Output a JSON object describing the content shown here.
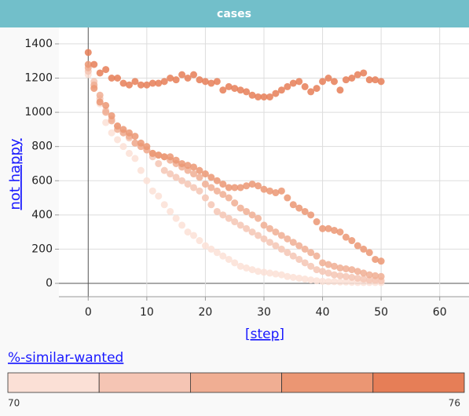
{
  "chart_data": {
    "type": "scatter",
    "title": "cases",
    "x_label": "[step]",
    "y_label": "not happy",
    "x": [
      0,
      1,
      2,
      3,
      4,
      5,
      6,
      7,
      8,
      9,
      10,
      11,
      12,
      13,
      14,
      15,
      16,
      17,
      18,
      19,
      20,
      21,
      22,
      23,
      24,
      25,
      26,
      27,
      28,
      29,
      30,
      31,
      32,
      33,
      34,
      35,
      36,
      37,
      38,
      39,
      40,
      41,
      42,
      43,
      44,
      45,
      46,
      47,
      48,
      49,
      50
    ],
    "series": [
      {
        "color": "#fbe0d6",
        "values": [
          1220,
          1150,
          1050,
          940,
          880,
          840,
          800,
          760,
          730,
          660,
          600,
          540,
          510,
          460,
          420,
          380,
          340,
          300,
          280,
          250,
          220,
          200,
          180,
          160,
          140,
          120,
          100,
          90,
          80,
          70,
          65,
          60,
          55,
          50,
          40,
          35,
          30,
          25,
          20,
          15,
          12,
          10,
          10,
          8,
          8,
          6,
          5,
          5,
          5,
          5,
          5
        ]
      },
      {
        "color": "#f5c5b4",
        "values": [
          1240,
          1180,
          1080,
          1010,
          960,
          920,
          880,
          850,
          820,
          800,
          780,
          740,
          700,
          660,
          640,
          620,
          600,
          580,
          560,
          540,
          500,
          460,
          420,
          400,
          380,
          360,
          340,
          320,
          300,
          280,
          260,
          240,
          220,
          200,
          180,
          160,
          140,
          120,
          100,
          80,
          70,
          60,
          50,
          45,
          40,
          35,
          30,
          25,
          20,
          18,
          15
        ]
      },
      {
        "color": "#f0ae93",
        "values": [
          1260,
          1160,
          1100,
          1000,
          950,
          900,
          880,
          860,
          820,
          800,
          780,
          760,
          750,
          740,
          720,
          700,
          680,
          660,
          640,
          620,
          580,
          560,
          540,
          520,
          500,
          470,
          440,
          420,
          400,
          380,
          340,
          320,
          300,
          280,
          260,
          240,
          220,
          200,
          180,
          160,
          120,
          110,
          100,
          90,
          85,
          80,
          70,
          60,
          50,
          45,
          40
        ]
      },
      {
        "color": "#eb9673",
        "values": [
          1280,
          1140,
          1060,
          1040,
          980,
          920,
          900,
          880,
          860,
          820,
          800,
          760,
          750,
          740,
          740,
          720,
          700,
          690,
          680,
          660,
          640,
          620,
          600,
          580,
          560,
          560,
          560,
          570,
          580,
          570,
          550,
          540,
          530,
          540,
          500,
          460,
          440,
          420,
          400,
          360,
          320,
          320,
          310,
          300,
          270,
          250,
          220,
          200,
          180,
          140,
          130
        ]
      },
      {
        "color": "#e67e57",
        "values": [
          1350,
          1280,
          1230,
          1250,
          1200,
          1200,
          1170,
          1160,
          1180,
          1160,
          1160,
          1170,
          1170,
          1180,
          1200,
          1190,
          1220,
          1200,
          1220,
          1190,
          1180,
          1170,
          1180,
          1130,
          1150,
          1140,
          1130,
          1120,
          1100,
          1090,
          1090,
          1090,
          1110,
          1130,
          1150,
          1170,
          1180,
          1150,
          1120,
          1140,
          1180,
          1200,
          1180,
          1130,
          1190,
          1200,
          1220,
          1230,
          1190,
          1190,
          1180
        ]
      }
    ],
    "xlim": [
      -5,
      65
    ],
    "ylim": [
      -78,
      1496
    ],
    "xticks": [
      0,
      10,
      20,
      30,
      40,
      50,
      60
    ],
    "yticks": [
      0,
      200,
      400,
      600,
      800,
      1000,
      1200,
      1400
    ],
    "grid": true,
    "legend": {
      "title": "%-similar-wanted",
      "min": 70,
      "max": 76
    }
  }
}
